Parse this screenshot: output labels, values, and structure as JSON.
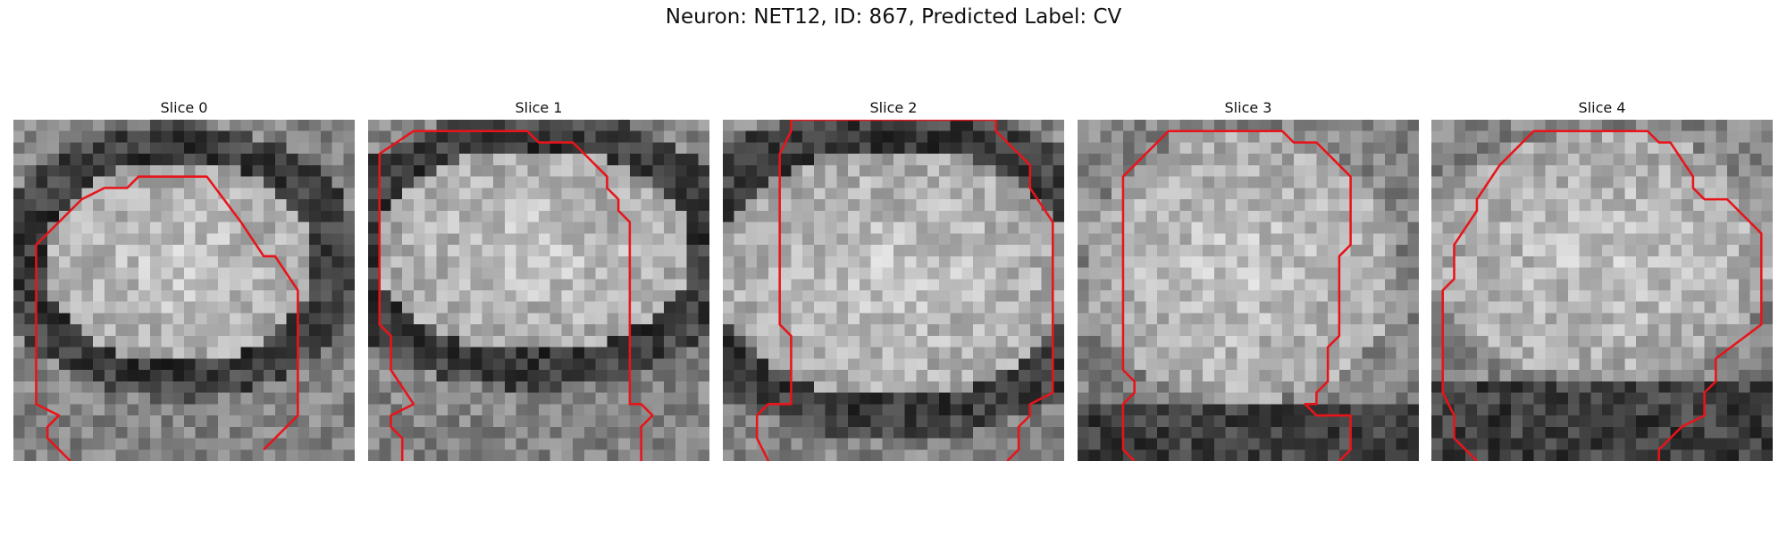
{
  "figure": {
    "title": "Neuron: NET12, ID: 867, Predicted Label: CV"
  },
  "panels": [
    {
      "title": "Slice 0",
      "contour_color": "#e8141a"
    },
    {
      "title": "Slice 1",
      "contour_color": "#e8141a"
    },
    {
      "title": "Slice 2",
      "contour_color": "#e8141a"
    },
    {
      "title": "Slice 3",
      "contour_color": "#e8141a"
    },
    {
      "title": "Slice 4",
      "contour_color": "#e8141a"
    }
  ]
}
